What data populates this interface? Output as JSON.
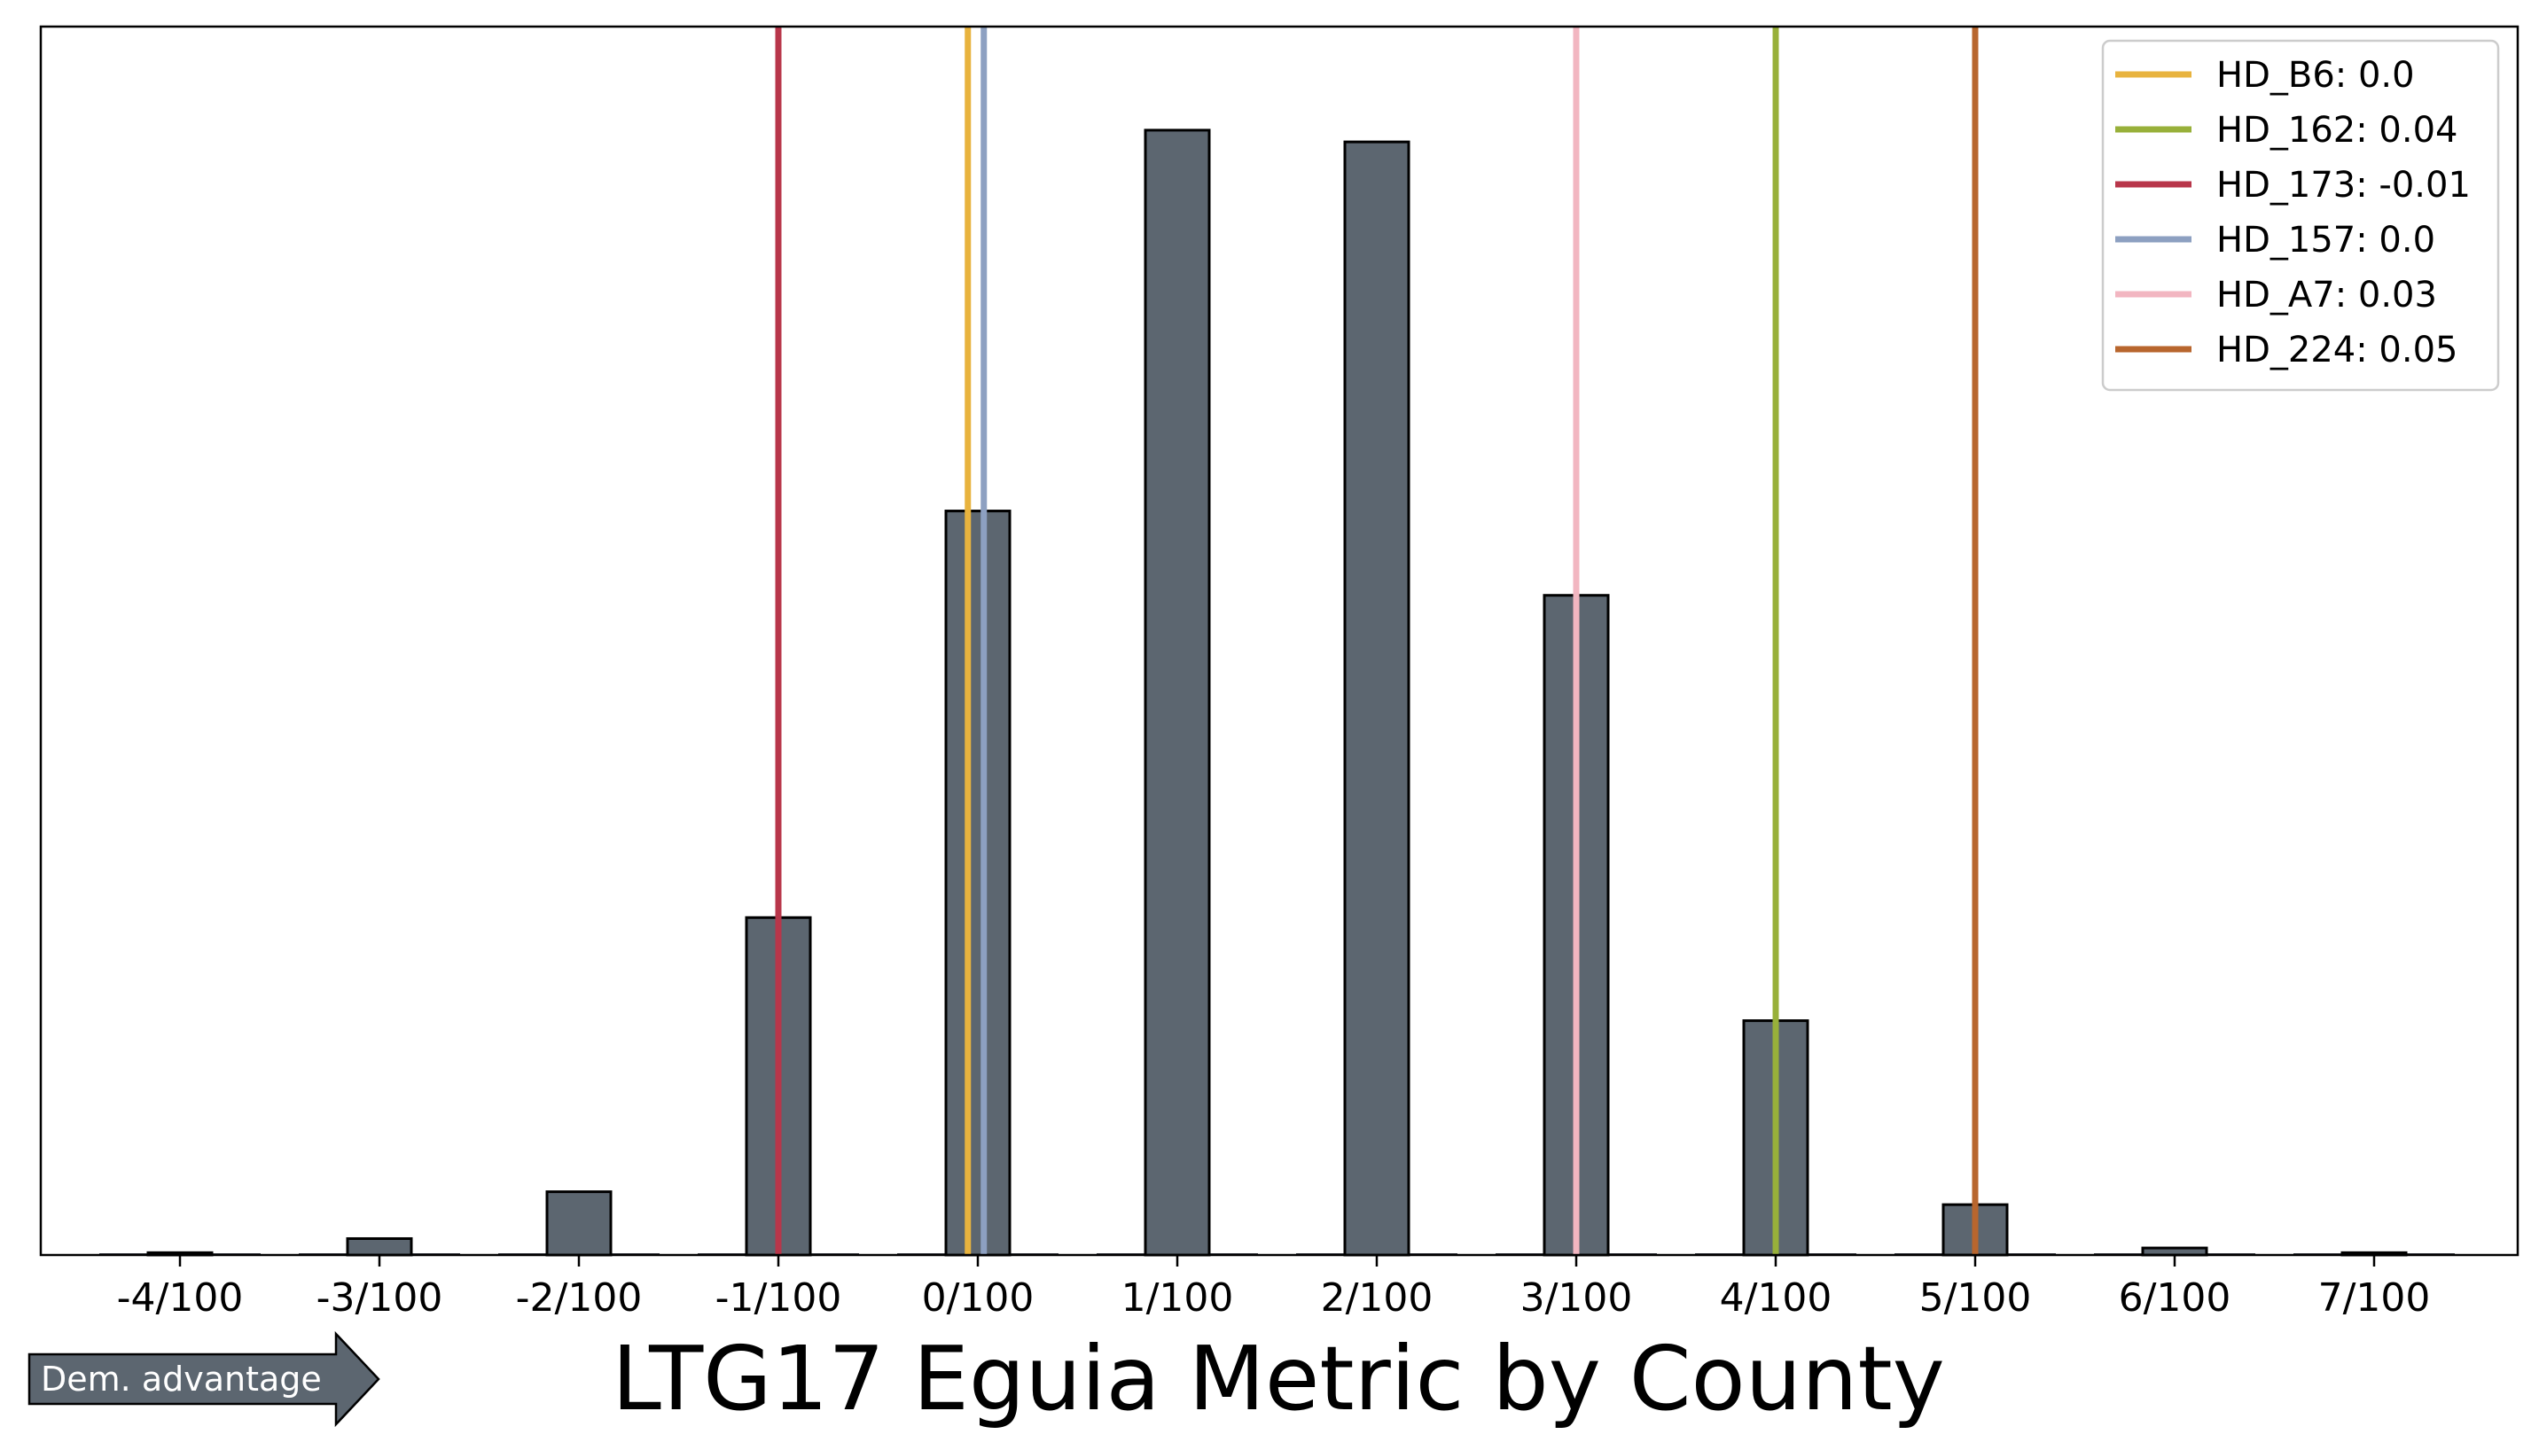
{
  "chart_data": {
    "type": "bar",
    "title": "LTG17 Eguia Metric by County",
    "xlabel": "",
    "ylabel": "",
    "xlim": [
      -4.4,
      7.7
    ],
    "ylim": [
      0,
      1.0
    ],
    "grid": false,
    "legend_position": "top-right",
    "bar_color": "#5c6670",
    "x": [
      -4,
      -3,
      -2,
      -1,
      0,
      1,
      2,
      3,
      4,
      5,
      6,
      7
    ],
    "tick_labels": [
      "-4/100",
      "-3/100",
      "-2/100",
      "-1/100",
      "0/100",
      "1/100",
      "2/100",
      "3/100",
      "4/100",
      "5/100",
      "6/100",
      "7/100"
    ],
    "values": [
      0.002,
      0.014,
      0.054,
      0.288,
      0.635,
      0.96,
      0.95,
      0.563,
      0.2,
      0.043,
      0.006,
      0.002
    ],
    "reference_lines": [
      {
        "name": "HD_B6: 0.0",
        "value": -0.05,
        "color": "#e8b33e"
      },
      {
        "name": "HD_162: 0.04",
        "value": 4.0,
        "color": "#98b03a"
      },
      {
        "name": "HD_173: -0.01",
        "value": -1.0,
        "color": "#b8364a"
      },
      {
        "name": "HD_157: 0.0",
        "value": 0.03,
        "color": "#8da0c1"
      },
      {
        "name": "HD_A7: 0.03",
        "value": 3.0,
        "color": "#f2b6c1"
      },
      {
        "name": "HD_224: 0.05",
        "value": 5.0,
        "color": "#b8662e"
      }
    ],
    "annotation": {
      "text": "Dem. advantage",
      "color": "#5c6670"
    }
  }
}
